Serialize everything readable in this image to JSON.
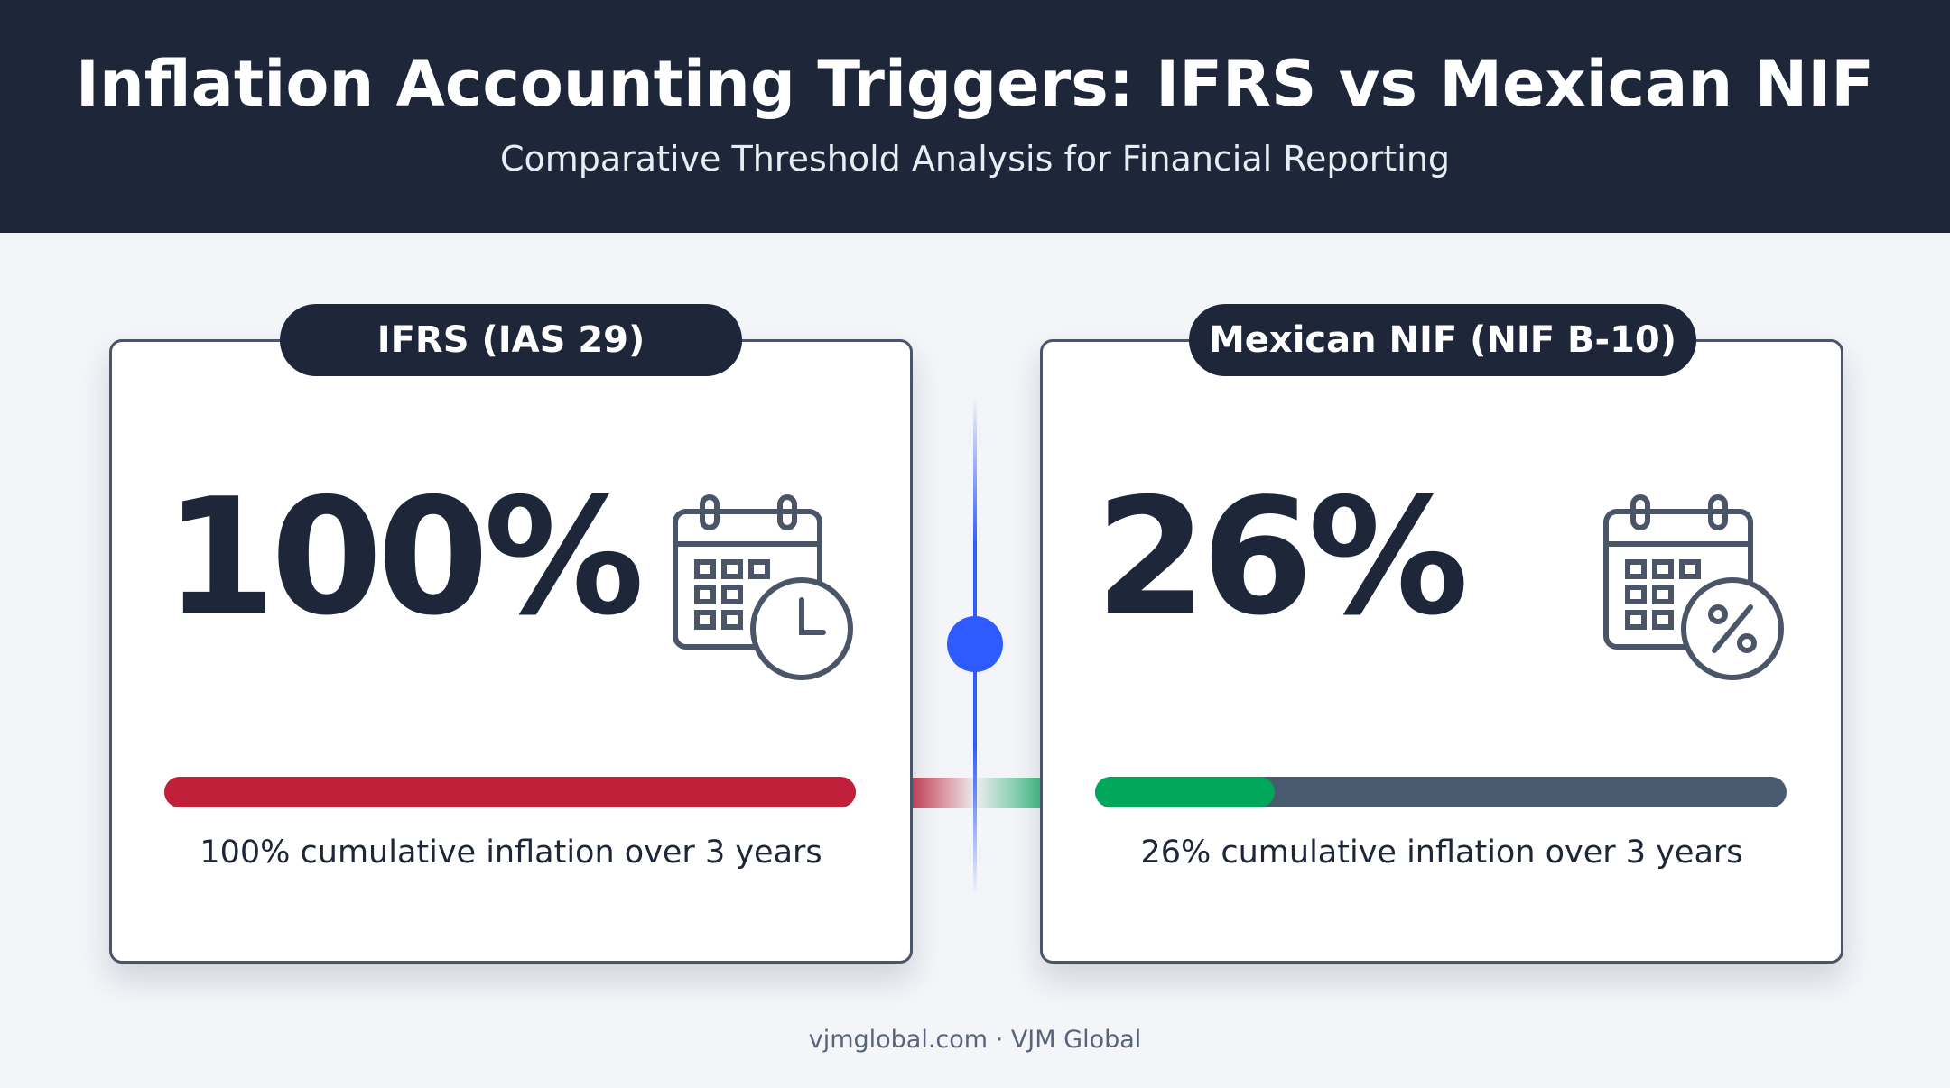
{
  "header": {
    "title": "Inflation Accounting Triggers: IFRS vs Mexican NIF",
    "subtitle": "Comparative Threshold Analysis for Financial Reporting"
  },
  "cards": [
    {
      "badge": "IFRS (IAS 29)",
      "value": 100,
      "value_label": "100%",
      "caption": "100% cumulative inflation over 3 years",
      "bar_color": "#c0203a"
    },
    {
      "badge": "Mexican NIF (NIF B-10)",
      "value": 26,
      "value_label": "26%",
      "caption": "26% cumulative inflation over 3 years",
      "bar_color": "#00a65a"
    }
  ],
  "footer": "vjmglobal.com · VJM Global"
}
